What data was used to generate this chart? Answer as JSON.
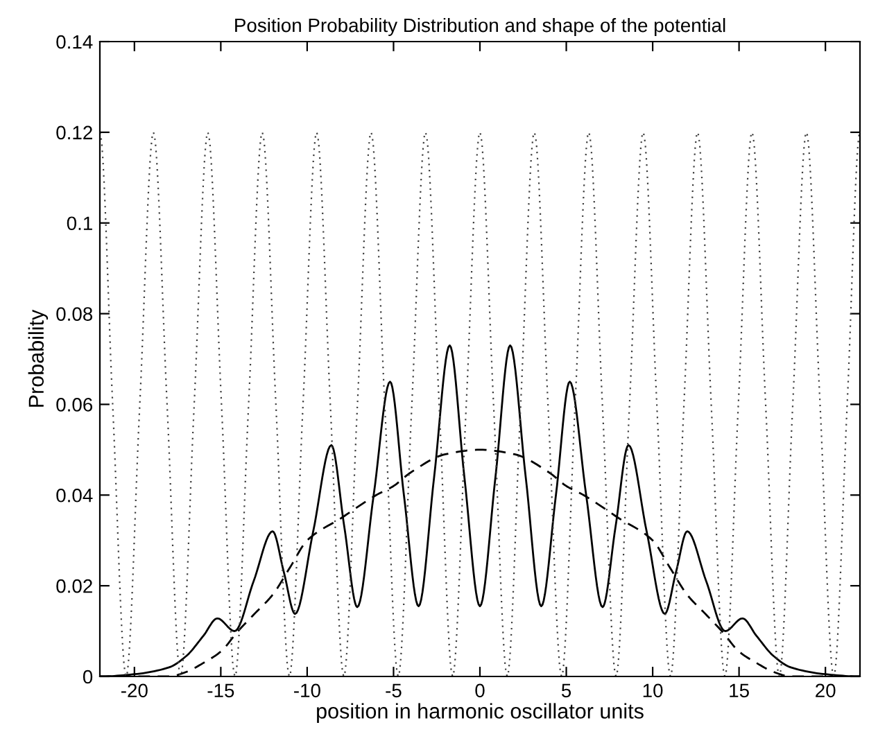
{
  "chart_data": {
    "type": "line",
    "title": "Position Probability Distribution and shape of the potential",
    "xlabel": "position in harmonic oscillator units",
    "ylabel": "Probability",
    "xlim": [
      -22,
      22
    ],
    "ylim": [
      0,
      0.14
    ],
    "xticks": [
      -20,
      -15,
      -10,
      -5,
      0,
      5,
      10,
      15,
      20
    ],
    "yticks": [
      0,
      0.02,
      0.04,
      0.06,
      0.08,
      0.1,
      0.12,
      0.14
    ],
    "grid": false,
    "legend": false,
    "marker": "none",
    "series": [
      {
        "color": "#000000",
        "line_style": "solid",
        "x": [
          -22,
          -20,
          -18,
          -17,
          -16,
          -15.2,
          -14.2,
          -13.1,
          -12.0,
          -11.35,
          -10.7,
          -9.65,
          -8.6,
          -7.85,
          -7.1,
          -6.15,
          -5.2,
          -4.4,
          -3.55,
          -2.65,
          -1.75,
          -0.9,
          0,
          0.9,
          1.75,
          2.65,
          3.55,
          4.4,
          5.2,
          6.15,
          7.1,
          7.85,
          8.6,
          9.65,
          10.7,
          11.35,
          12.0,
          13.1,
          14.2,
          15.2,
          16,
          17,
          18,
          20,
          22
        ],
        "values": [
          0,
          0.0005,
          0.002,
          0.0045,
          0.009,
          0.0128,
          0.01,
          0.021,
          0.032,
          0.023,
          0.0138,
          0.032,
          0.051,
          0.033,
          0.0153,
          0.04,
          0.065,
          0.04,
          0.0155,
          0.044,
          0.073,
          0.044,
          0.0155,
          0.044,
          0.073,
          0.044,
          0.0155,
          0.04,
          0.065,
          0.04,
          0.0153,
          0.033,
          0.051,
          0.032,
          0.0138,
          0.023,
          0.032,
          0.021,
          0.01,
          0.0128,
          0.009,
          0.0045,
          0.002,
          0.0005,
          0
        ]
      },
      {
        "color": "#000000",
        "line_style": "dashed",
        "x": [
          -22,
          -18,
          -17,
          -16,
          -15,
          -14,
          -13,
          -12,
          -11,
          -10,
          -8,
          -6,
          -5,
          -4,
          -2,
          0,
          2,
          4,
          5,
          6,
          8,
          10,
          11,
          12,
          13,
          14,
          15,
          16,
          17,
          18,
          22
        ],
        "values": [
          0,
          0,
          0.001,
          0.003,
          0.0055,
          0.01,
          0.014,
          0.018,
          0.024,
          0.03,
          0.035,
          0.04,
          0.042,
          0.045,
          0.049,
          0.05,
          0.049,
          0.045,
          0.042,
          0.04,
          0.035,
          0.03,
          0.024,
          0.018,
          0.014,
          0.01,
          0.0055,
          0.003,
          0.001,
          0,
          0
        ]
      },
      {
        "color": "#404040",
        "line_style": "dotted",
        "x": [
          -22,
          -21.26,
          -20.48,
          -19.69,
          -18.9,
          -18.11,
          -17.33,
          -16.54,
          -15.75,
          -14.96,
          -14.18,
          -13.39,
          -12.6,
          -11.81,
          -11.03,
          -10.24,
          -9.45,
          -8.66,
          -7.88,
          -7.09,
          -6.3,
          -5.51,
          -4.73,
          -3.94,
          -3.15,
          -2.36,
          -1.58,
          -0.79,
          0,
          0.79,
          1.58,
          2.36,
          3.15,
          3.94,
          4.73,
          5.51,
          6.3,
          7.09,
          7.88,
          8.66,
          9.45,
          10.24,
          11.03,
          11.81,
          12.6,
          13.39,
          14.18,
          14.96,
          15.75,
          16.54,
          17.33,
          18.11,
          18.9,
          19.69,
          20.48,
          21.26,
          22
        ],
        "values": [
          0.12,
          0.06,
          0,
          0.06,
          0.12,
          0.06,
          0,
          0.06,
          0.12,
          0.06,
          0,
          0.06,
          0.12,
          0.06,
          0,
          0.06,
          0.12,
          0.06,
          0,
          0.06,
          0.12,
          0.06,
          0,
          0.06,
          0.12,
          0.06,
          0,
          0.06,
          0.12,
          0.06,
          0,
          0.06,
          0.12,
          0.06,
          0,
          0.06,
          0.12,
          0.06,
          0,
          0.06,
          0.12,
          0.06,
          0,
          0.06,
          0.12,
          0.06,
          0,
          0.06,
          0.12,
          0.06,
          0,
          0.06,
          0.12,
          0.06,
          0,
          0.06,
          0.12
        ]
      }
    ]
  }
}
